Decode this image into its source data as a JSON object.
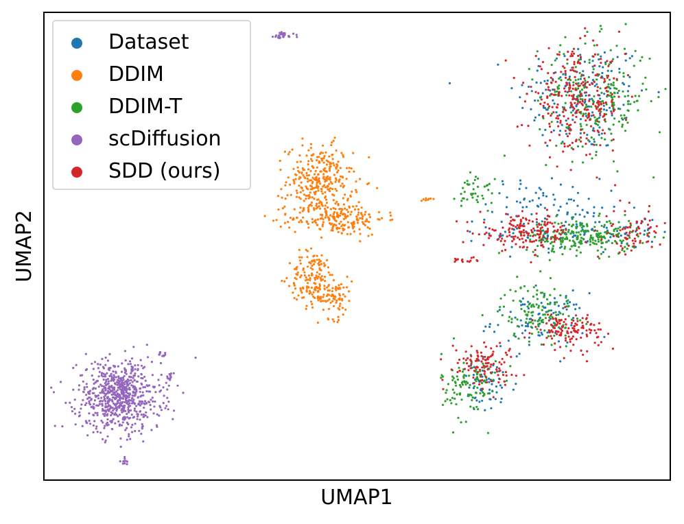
{
  "chart_data": {
    "type": "scatter",
    "title": "",
    "xlabel": "UMAP1",
    "ylabel": "UMAP2",
    "xlim": [
      0,
      100
    ],
    "ylim": [
      0,
      100
    ],
    "axis_ticks": false,
    "grid": false,
    "legend_position": "top-left",
    "series": [
      {
        "name": "Dataset",
        "color": "#1f77b4",
        "clusters": [
          {
            "cx": 86,
            "cy": 82,
            "sx": 7,
            "sy": 8,
            "n": 180
          },
          {
            "cx": 85,
            "cy": 53,
            "sx": 9,
            "sy": 3,
            "n": 120
          },
          {
            "cx": 80,
            "cy": 60,
            "sx": 6,
            "sy": 3,
            "n": 60
          },
          {
            "cx": 79,
            "cy": 34,
            "sx": 5,
            "sy": 4,
            "n": 90
          },
          {
            "cx": 71,
            "cy": 20,
            "sx": 3,
            "sy": 4,
            "n": 60
          }
        ]
      },
      {
        "name": "DDIM",
        "color": "#ff7f0e",
        "clusters": [
          {
            "cx": 44,
            "cy": 64,
            "sx": 3.5,
            "sy": 5,
            "n": 300
          },
          {
            "cx": 47,
            "cy": 56,
            "sx": 5,
            "sy": 2.5,
            "n": 200
          },
          {
            "cx": 43,
            "cy": 43,
            "sx": 2.5,
            "sy": 4,
            "n": 160
          },
          {
            "cx": 46.5,
            "cy": 39,
            "sx": 1.8,
            "sy": 3,
            "n": 70
          },
          {
            "cx": 61,
            "cy": 60,
            "sx": 0.5,
            "sy": 0.3,
            "n": 8
          }
        ]
      },
      {
        "name": "DDIM-T",
        "color": "#2ca02c",
        "clusters": [
          {
            "cx": 88,
            "cy": 82,
            "sx": 6,
            "sy": 8,
            "n": 230
          },
          {
            "cx": 86,
            "cy": 52,
            "sx": 6,
            "sy": 2.5,
            "n": 220
          },
          {
            "cx": 79,
            "cy": 36,
            "sx": 4,
            "sy": 4,
            "n": 130
          },
          {
            "cx": 68,
            "cy": 20,
            "sx": 3,
            "sy": 5,
            "n": 110
          },
          {
            "cx": 69,
            "cy": 62,
            "sx": 2,
            "sy": 3,
            "n": 40
          }
        ]
      },
      {
        "name": "scDiffusion",
        "color": "#9467bd",
        "clusters": [
          {
            "cx": 12,
            "cy": 18,
            "sx": 4.5,
            "sy": 5,
            "n": 700
          },
          {
            "cx": 38,
            "cy": 95,
            "sx": 1.3,
            "sy": 0.5,
            "n": 30
          },
          {
            "cx": 13,
            "cy": 4,
            "sx": 0.5,
            "sy": 0.8,
            "n": 10
          },
          {
            "cx": 19,
            "cy": 27,
            "sx": 0.6,
            "sy": 0.6,
            "n": 12
          },
          {
            "cx": 20,
            "cy": 22,
            "sx": 0.5,
            "sy": 0.5,
            "n": 10
          }
        ]
      },
      {
        "name": "SDD (ours)",
        "color": "#d62728",
        "clusters": [
          {
            "cx": 85,
            "cy": 81,
            "sx": 5,
            "sy": 7,
            "n": 280
          },
          {
            "cx": 77,
            "cy": 53,
            "sx": 5,
            "sy": 2.5,
            "n": 160
          },
          {
            "cx": 94,
            "cy": 53,
            "sx": 3,
            "sy": 3,
            "n": 70
          },
          {
            "cx": 84,
            "cy": 32,
            "sx": 3.5,
            "sy": 2.5,
            "n": 120
          },
          {
            "cx": 70,
            "cy": 25,
            "sx": 3.5,
            "sy": 3,
            "n": 110
          },
          {
            "cx": 67,
            "cy": 47,
            "sx": 1.5,
            "sy": 0.5,
            "n": 15
          }
        ]
      }
    ]
  }
}
